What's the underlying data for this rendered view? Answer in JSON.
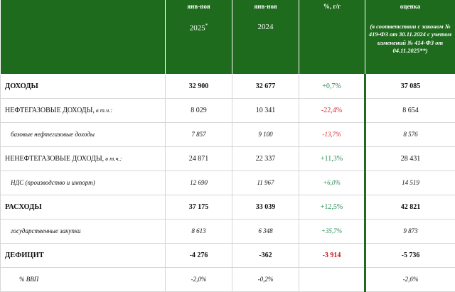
{
  "header": {
    "col1_top": "янв-ноя",
    "col1_year": "2025",
    "col1_mark": "*",
    "col2_top": "янв-ноя",
    "col2_year": "2024",
    "col3_top": "%, г/г",
    "col4_top": "оценка",
    "col4_note": "(в соответствии с законом № 419-ФЗ от 30.11.2024 с учетом изменений № 414-ФЗ от 04.11.2025**)"
  },
  "rows": [
    {
      "label": "ДОХОДЫ",
      "qual": "",
      "v2025": "32 900",
      "v2024": "32 677",
      "pct": "+0,7%",
      "est": "37 085"
    },
    {
      "label": "НЕФТЕГАЗОВЫЕ ДОХОДЫ,",
      "qual": " в т.ч.:",
      "v2025": "8 029",
      "v2024": "10 341",
      "pct": "-22,4%",
      "est": "8 654"
    },
    {
      "label": "базовые нефтегазовые доходы",
      "qual": "",
      "v2025": "7 857",
      "v2024": "9 100",
      "pct": "-13,7%",
      "est": "8 576"
    },
    {
      "label": "НЕНЕФТЕГАЗОВЫЕ ДОХОДЫ,",
      "qual": " в т.ч.:",
      "v2025": "24 871",
      "v2024": "22 337",
      "pct": "+11,3%",
      "est": "28 431"
    },
    {
      "label": "НДС (производство и импорт)",
      "qual": "",
      "v2025": "12 690",
      "v2024": "11 967",
      "pct": "+6,0%",
      "est": "14 519"
    },
    {
      "label": "РАСХОДЫ",
      "qual": "",
      "v2025": "37 175",
      "v2024": "33 039",
      "pct": "+12,5%",
      "est": "42 821"
    },
    {
      "label": "государственные закупки",
      "qual": "",
      "v2025": "8 613",
      "v2024": "6 348",
      "pct": "+35,7%",
      "est": "9 873"
    },
    {
      "label": "ДЕФИЦИТ",
      "qual": "",
      "v2025": "-4 276",
      "v2024": "-362",
      "pct": "-3 914",
      "est": "-5 736"
    },
    {
      "label": "% ВВП",
      "qual": "",
      "v2025": "-2,0%",
      "v2024": "-0,2%",
      "pct": "",
      "est": "-2,6%"
    }
  ]
}
